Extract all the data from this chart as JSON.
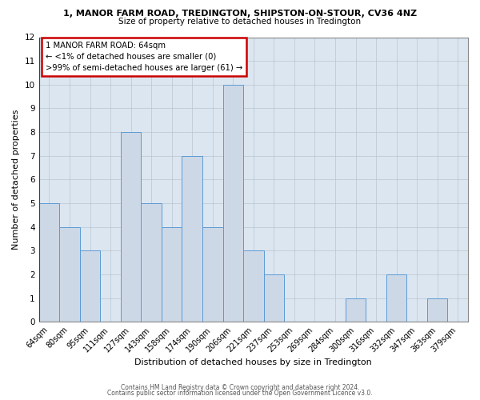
{
  "title1": "1, MANOR FARM ROAD, TREDINGTON, SHIPSTON-ON-STOUR, CV36 4NZ",
  "title2": "Size of property relative to detached houses in Tredington",
  "xlabel": "Distribution of detached houses by size in Tredington",
  "ylabel": "Number of detached properties",
  "categories": [
    "64sqm",
    "80sqm",
    "95sqm",
    "111sqm",
    "127sqm",
    "143sqm",
    "158sqm",
    "174sqm",
    "190sqm",
    "206sqm",
    "221sqm",
    "237sqm",
    "253sqm",
    "269sqm",
    "284sqm",
    "300sqm",
    "316sqm",
    "332sqm",
    "347sqm",
    "363sqm",
    "379sqm"
  ],
  "values": [
    5,
    4,
    3,
    0,
    8,
    5,
    4,
    7,
    4,
    10,
    3,
    2,
    0,
    0,
    0,
    1,
    0,
    2,
    0,
    1,
    0
  ],
  "bar_face_color": "#cdd8e6",
  "bar_edge_color": "#5b9bd5",
  "grid_color": "#b8c4d0",
  "bg_color": "#dce6f0",
  "ylim": [
    0,
    12
  ],
  "yticks": [
    0,
    1,
    2,
    3,
    4,
    5,
    6,
    7,
    8,
    9,
    10,
    11,
    12
  ],
  "annotation_box_color": "#ffffff",
  "annotation_box_edge": "#cc0000",
  "annotation_line1": "1 MANOR FARM ROAD: 64sqm",
  "annotation_line2": "← <1% of detached houses are smaller (0)",
  "annotation_line3": ">99% of semi-detached houses are larger (61) →",
  "footer1": "Contains HM Land Registry data © Crown copyright and database right 2024.",
  "footer2": "Contains public sector information licensed under the Open Government Licence v3.0.",
  "red_line_color": "#cc0000",
  "title1_fontsize": 8.0,
  "title2_fontsize": 7.5,
  "annotation_fontsize": 7.2,
  "xlabel_fontsize": 8.0,
  "ylabel_fontsize": 8.0,
  "tick_fontsize": 7.0,
  "ytick_fontsize": 7.5,
  "footer_fontsize": 5.5
}
